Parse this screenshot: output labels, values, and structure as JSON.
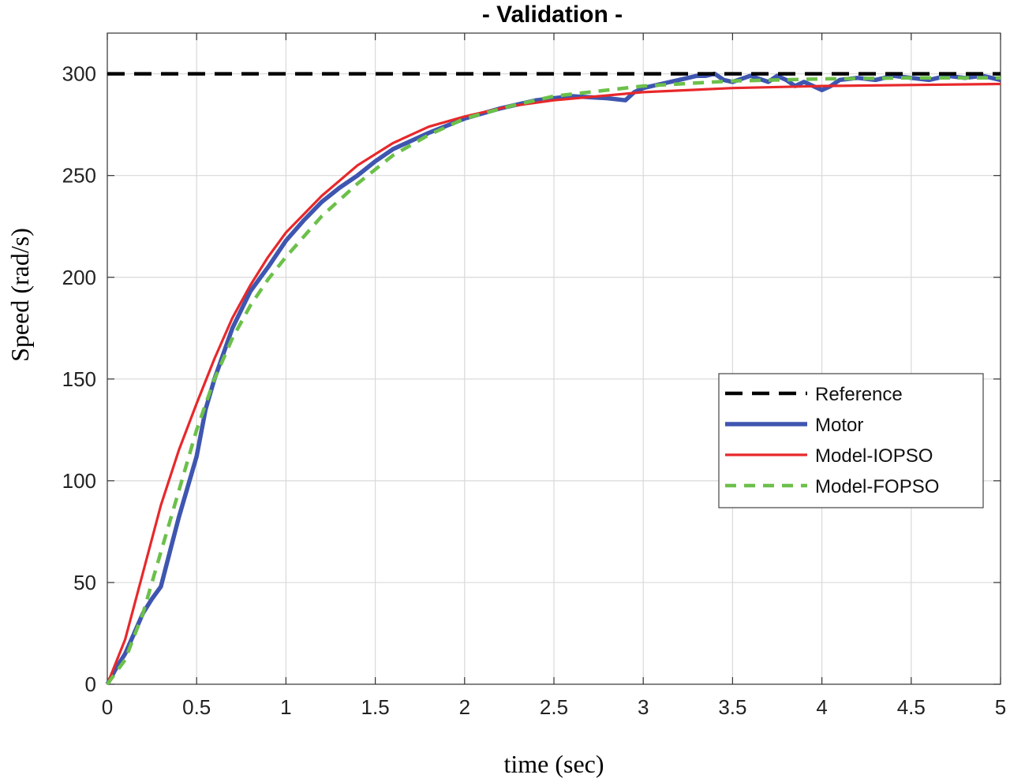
{
  "chart_data": {
    "type": "line",
    "title": "- Validation -",
    "xlabel": "time (sec)",
    "ylabel": "Speed (rad/s)",
    "xlim": [
      0,
      5
    ],
    "ylim": [
      0,
      320
    ],
    "xticks": [
      0,
      0.5,
      1,
      1.5,
      2,
      2.5,
      3,
      3.5,
      4,
      4.5,
      5
    ],
    "xtick_labels": [
      "0",
      "0.5",
      "1",
      "1.5",
      "2",
      "2.5",
      "3",
      "3.5",
      "4",
      "4.5",
      "5"
    ],
    "yticks": [
      0,
      50,
      100,
      150,
      200,
      250,
      300
    ],
    "ytick_labels": [
      "0",
      "50",
      "100",
      "150",
      "200",
      "250",
      "300"
    ],
    "grid": true,
    "legend_position": "right",
    "series": [
      {
        "name": "Reference",
        "color": "#000000",
        "style": "dashed",
        "x": [
          0,
          5
        ],
        "y": [
          300,
          300
        ]
      },
      {
        "name": "Motor",
        "color": "#3f56b0",
        "style": "solid-thick",
        "x": [
          0,
          0.05,
          0.1,
          0.15,
          0.2,
          0.25,
          0.3,
          0.35,
          0.4,
          0.45,
          0.5,
          0.55,
          0.6,
          0.7,
          0.8,
          0.9,
          1.0,
          1.1,
          1.2,
          1.3,
          1.4,
          1.5,
          1.6,
          1.8,
          2.0,
          2.2,
          2.4,
          2.6,
          2.8,
          2.9,
          2.95,
          3.0,
          3.1,
          3.2,
          3.3,
          3.35,
          3.4,
          3.45,
          3.5,
          3.6,
          3.7,
          3.75,
          3.8,
          3.85,
          3.9,
          4.0,
          4.05,
          4.1,
          4.2,
          4.3,
          4.4,
          4.5,
          4.6,
          4.7,
          4.8,
          4.9,
          5.0
        ],
        "y": [
          0,
          8,
          15,
          25,
          35,
          42,
          48,
          65,
          82,
          97,
          112,
          135,
          150,
          175,
          193,
          205,
          218,
          228,
          237,
          244,
          250,
          257,
          263,
          271,
          278,
          283,
          287,
          289,
          288,
          287,
          291,
          293,
          295,
          297,
          299,
          299,
          300,
          297,
          296,
          299,
          296,
          299,
          297,
          294,
          296,
          292,
          294,
          297,
          298,
          297,
          299,
          298,
          297,
          299,
          298,
          299,
          297
        ]
      },
      {
        "name": "Model-IOPSO",
        "color": "#e8282b",
        "style": "solid",
        "x": [
          0,
          0.1,
          0.2,
          0.3,
          0.4,
          0.5,
          0.6,
          0.7,
          0.8,
          0.9,
          1.0,
          1.2,
          1.4,
          1.6,
          1.8,
          2.0,
          2.25,
          2.5,
          3.0,
          3.5,
          4.0,
          4.5,
          5.0
        ],
        "y": [
          0,
          22,
          55,
          88,
          115,
          138,
          160,
          180,
          196,
          210,
          222,
          240,
          255,
          266,
          274,
          279,
          284,
          287,
          291,
          293,
          294,
          294.5,
          295
        ]
      },
      {
        "name": "Model-FOPSO",
        "color": "#6cc04a",
        "style": "dashed",
        "x": [
          0,
          0.1,
          0.2,
          0.3,
          0.4,
          0.5,
          0.6,
          0.7,
          0.8,
          0.9,
          1.0,
          1.2,
          1.4,
          1.6,
          1.8,
          2.0,
          2.25,
          2.5,
          3.0,
          3.5,
          4.0,
          4.5,
          5.0
        ],
        "y": [
          0,
          12,
          35,
          65,
          95,
          125,
          150,
          170,
          186,
          199,
          210,
          230,
          246,
          260,
          270,
          278,
          284,
          289,
          294,
          296.5,
          297.5,
          298,
          298
        ]
      }
    ]
  }
}
